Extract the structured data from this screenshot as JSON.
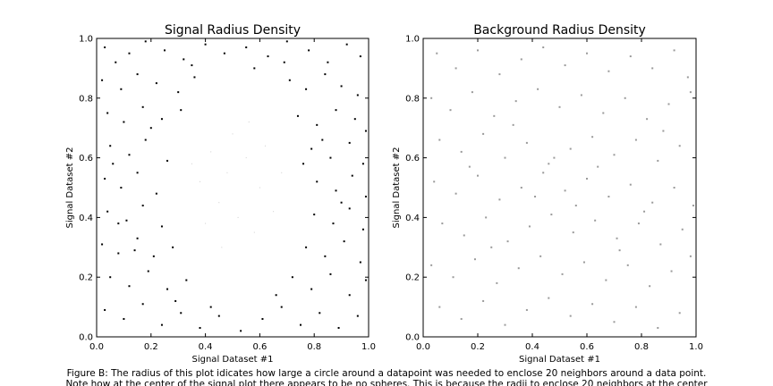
{
  "chart_data": [
    {
      "type": "scatter",
      "title": "Signal Radius Density",
      "xlabel": "Signal Dataset #1",
      "ylabel": "Signal Dataset #2",
      "xlim": [
        0.0,
        1.0
      ],
      "ylim": [
        0.0,
        1.0
      ],
      "xticks": [
        "0.0",
        "0.2",
        "0.4",
        "0.6",
        "0.8",
        "1.0"
      ],
      "yticks": [
        "0.0",
        "0.2",
        "0.4",
        "0.6",
        "0.8",
        "1.0"
      ],
      "grid": false,
      "point_color": "#000000",
      "points": [
        [
          0.03,
          0.97
        ],
        [
          0.07,
          0.92
        ],
        [
          0.12,
          0.95
        ],
        [
          0.18,
          0.99
        ],
        [
          0.25,
          0.96
        ],
        [
          0.32,
          0.93
        ],
        [
          0.4,
          0.98
        ],
        [
          0.47,
          0.95
        ],
        [
          0.55,
          0.97
        ],
        [
          0.63,
          0.94
        ],
        [
          0.7,
          0.99
        ],
        [
          0.78,
          0.96
        ],
        [
          0.85,
          0.92
        ],
        [
          0.92,
          0.98
        ],
        [
          0.97,
          0.94
        ],
        [
          0.02,
          0.86
        ],
        [
          0.09,
          0.83
        ],
        [
          0.15,
          0.88
        ],
        [
          0.22,
          0.85
        ],
        [
          0.3,
          0.82
        ],
        [
          0.36,
          0.87
        ],
        [
          0.71,
          0.86
        ],
        [
          0.77,
          0.83
        ],
        [
          0.84,
          0.88
        ],
        [
          0.9,
          0.84
        ],
        [
          0.96,
          0.81
        ],
        [
          0.04,
          0.75
        ],
        [
          0.1,
          0.72
        ],
        [
          0.17,
          0.77
        ],
        [
          0.24,
          0.73
        ],
        [
          0.31,
          0.76
        ],
        [
          0.74,
          0.74
        ],
        [
          0.81,
          0.71
        ],
        [
          0.88,
          0.76
        ],
        [
          0.95,
          0.73
        ],
        [
          0.99,
          0.69
        ],
        [
          0.05,
          0.64
        ],
        [
          0.12,
          0.61
        ],
        [
          0.18,
          0.66
        ],
        [
          0.26,
          0.59
        ],
        [
          0.79,
          0.63
        ],
        [
          0.86,
          0.6
        ],
        [
          0.93,
          0.65
        ],
        [
          0.98,
          0.58
        ],
        [
          0.03,
          0.53
        ],
        [
          0.09,
          0.5
        ],
        [
          0.15,
          0.55
        ],
        [
          0.22,
          0.48
        ],
        [
          0.81,
          0.52
        ],
        [
          0.88,
          0.49
        ],
        [
          0.94,
          0.54
        ],
        [
          0.99,
          0.47
        ],
        [
          0.04,
          0.42
        ],
        [
          0.11,
          0.39
        ],
        [
          0.17,
          0.44
        ],
        [
          0.24,
          0.37
        ],
        [
          0.8,
          0.41
        ],
        [
          0.87,
          0.38
        ],
        [
          0.93,
          0.43
        ],
        [
          0.98,
          0.36
        ],
        [
          0.02,
          0.31
        ],
        [
          0.08,
          0.28
        ],
        [
          0.15,
          0.33
        ],
        [
          0.21,
          0.27
        ],
        [
          0.28,
          0.3
        ],
        [
          0.77,
          0.3
        ],
        [
          0.84,
          0.27
        ],
        [
          0.91,
          0.32
        ],
        [
          0.97,
          0.25
        ],
        [
          0.05,
          0.2
        ],
        [
          0.12,
          0.17
        ],
        [
          0.19,
          0.22
        ],
        [
          0.26,
          0.16
        ],
        [
          0.33,
          0.19
        ],
        [
          0.72,
          0.2
        ],
        [
          0.79,
          0.16
        ],
        [
          0.86,
          0.21
        ],
        [
          0.93,
          0.14
        ],
        [
          0.99,
          0.19
        ],
        [
          0.03,
          0.09
        ],
        [
          0.1,
          0.06
        ],
        [
          0.17,
          0.11
        ],
        [
          0.24,
          0.04
        ],
        [
          0.31,
          0.08
        ],
        [
          0.38,
          0.03
        ],
        [
          0.45,
          0.07
        ],
        [
          0.53,
          0.02
        ],
        [
          0.61,
          0.06
        ],
        [
          0.68,
          0.1
        ],
        [
          0.75,
          0.04
        ],
        [
          0.82,
          0.08
        ],
        [
          0.89,
          0.03
        ],
        [
          0.96,
          0.07
        ],
        [
          0.06,
          0.58
        ],
        [
          0.14,
          0.29
        ],
        [
          0.29,
          0.12
        ],
        [
          0.66,
          0.14
        ],
        [
          0.83,
          0.66
        ],
        [
          0.69,
          0.92
        ],
        [
          0.35,
          0.91
        ],
        [
          0.2,
          0.7
        ],
        [
          0.9,
          0.45
        ],
        [
          0.08,
          0.38
        ],
        [
          0.58,
          0.9
        ],
        [
          0.42,
          0.1
        ],
        [
          0.76,
          0.58
        ]
      ],
      "sparse_points": [
        [
          0.42,
          0.62
        ],
        [
          0.48,
          0.55
        ],
        [
          0.55,
          0.6
        ],
        [
          0.6,
          0.5
        ],
        [
          0.45,
          0.45
        ],
        [
          0.52,
          0.4
        ],
        [
          0.58,
          0.35
        ],
        [
          0.4,
          0.38
        ],
        [
          0.65,
          0.42
        ],
        [
          0.5,
          0.68
        ],
        [
          0.38,
          0.52
        ],
        [
          0.62,
          0.64
        ],
        [
          0.46,
          0.3
        ],
        [
          0.56,
          0.72
        ],
        [
          0.35,
          0.58
        ],
        [
          0.68,
          0.55
        ]
      ]
    },
    {
      "type": "scatter",
      "title": "Background Radius Density",
      "xlabel": "Signal Dataset #1",
      "ylabel": "Signal Dataset #2",
      "xlim": [
        0.0,
        1.0
      ],
      "ylim": [
        0.0,
        1.0
      ],
      "xticks": [
        "0.0",
        "0.2",
        "0.4",
        "0.6",
        "0.8",
        "1.0"
      ],
      "yticks": [
        "0.0",
        "0.2",
        "0.4",
        "0.6",
        "0.8",
        "1.0"
      ],
      "grid": false,
      "point_color": "#9a9a9a",
      "points": [
        [
          0.05,
          0.95
        ],
        [
          0.12,
          0.9
        ],
        [
          0.2,
          0.96
        ],
        [
          0.28,
          0.88
        ],
        [
          0.36,
          0.93
        ],
        [
          0.44,
          0.97
        ],
        [
          0.52,
          0.91
        ],
        [
          0.6,
          0.95
        ],
        [
          0.68,
          0.89
        ],
        [
          0.76,
          0.94
        ],
        [
          0.84,
          0.9
        ],
        [
          0.92,
          0.96
        ],
        [
          0.97,
          0.87
        ],
        [
          0.03,
          0.8
        ],
        [
          0.1,
          0.76
        ],
        [
          0.18,
          0.82
        ],
        [
          0.26,
          0.74
        ],
        [
          0.34,
          0.79
        ],
        [
          0.42,
          0.83
        ],
        [
          0.5,
          0.77
        ],
        [
          0.58,
          0.81
        ],
        [
          0.66,
          0.75
        ],
        [
          0.74,
          0.8
        ],
        [
          0.82,
          0.73
        ],
        [
          0.9,
          0.78
        ],
        [
          0.98,
          0.82
        ],
        [
          0.06,
          0.66
        ],
        [
          0.14,
          0.62
        ],
        [
          0.22,
          0.68
        ],
        [
          0.3,
          0.6
        ],
        [
          0.38,
          0.65
        ],
        [
          0.46,
          0.58
        ],
        [
          0.54,
          0.63
        ],
        [
          0.62,
          0.67
        ],
        [
          0.7,
          0.61
        ],
        [
          0.78,
          0.66
        ],
        [
          0.86,
          0.59
        ],
        [
          0.94,
          0.64
        ],
        [
          0.04,
          0.52
        ],
        [
          0.12,
          0.48
        ],
        [
          0.2,
          0.54
        ],
        [
          0.28,
          0.46
        ],
        [
          0.36,
          0.5
        ],
        [
          0.44,
          0.55
        ],
        [
          0.52,
          0.49
        ],
        [
          0.6,
          0.53
        ],
        [
          0.68,
          0.47
        ],
        [
          0.76,
          0.51
        ],
        [
          0.84,
          0.45
        ],
        [
          0.92,
          0.5
        ],
        [
          0.99,
          0.44
        ],
        [
          0.07,
          0.38
        ],
        [
          0.15,
          0.34
        ],
        [
          0.23,
          0.4
        ],
        [
          0.31,
          0.32
        ],
        [
          0.39,
          0.37
        ],
        [
          0.47,
          0.41
        ],
        [
          0.55,
          0.35
        ],
        [
          0.63,
          0.39
        ],
        [
          0.71,
          0.33
        ],
        [
          0.79,
          0.38
        ],
        [
          0.87,
          0.31
        ],
        [
          0.95,
          0.36
        ],
        [
          0.03,
          0.24
        ],
        [
          0.11,
          0.2
        ],
        [
          0.19,
          0.26
        ],
        [
          0.27,
          0.18
        ],
        [
          0.35,
          0.23
        ],
        [
          0.43,
          0.27
        ],
        [
          0.51,
          0.21
        ],
        [
          0.59,
          0.25
        ],
        [
          0.67,
          0.19
        ],
        [
          0.75,
          0.24
        ],
        [
          0.83,
          0.17
        ],
        [
          0.91,
          0.22
        ],
        [
          0.98,
          0.27
        ],
        [
          0.06,
          0.1
        ],
        [
          0.14,
          0.06
        ],
        [
          0.22,
          0.12
        ],
        [
          0.3,
          0.04
        ],
        [
          0.38,
          0.09
        ],
        [
          0.46,
          0.13
        ],
        [
          0.54,
          0.07
        ],
        [
          0.62,
          0.11
        ],
        [
          0.7,
          0.05
        ],
        [
          0.78,
          0.1
        ],
        [
          0.86,
          0.03
        ],
        [
          0.94,
          0.08
        ],
        [
          0.48,
          0.6
        ],
        [
          0.56,
          0.44
        ],
        [
          0.41,
          0.47
        ],
        [
          0.64,
          0.57
        ],
        [
          0.33,
          0.71
        ],
        [
          0.72,
          0.29
        ],
        [
          0.17,
          0.57
        ],
        [
          0.88,
          0.69
        ],
        [
          0.25,
          0.3
        ],
        [
          0.81,
          0.42
        ]
      ]
    }
  ],
  "caption": {
    "line1": "Figure B: The radius of this plot idicates how large a circle around a datapoint was needed to enclose 20 neighbors around a data point.",
    "line2": "Note how at the center of the signal plot there appears to be no spheres.  This is because the radii to enclose 20 neighbors at the center"
  }
}
